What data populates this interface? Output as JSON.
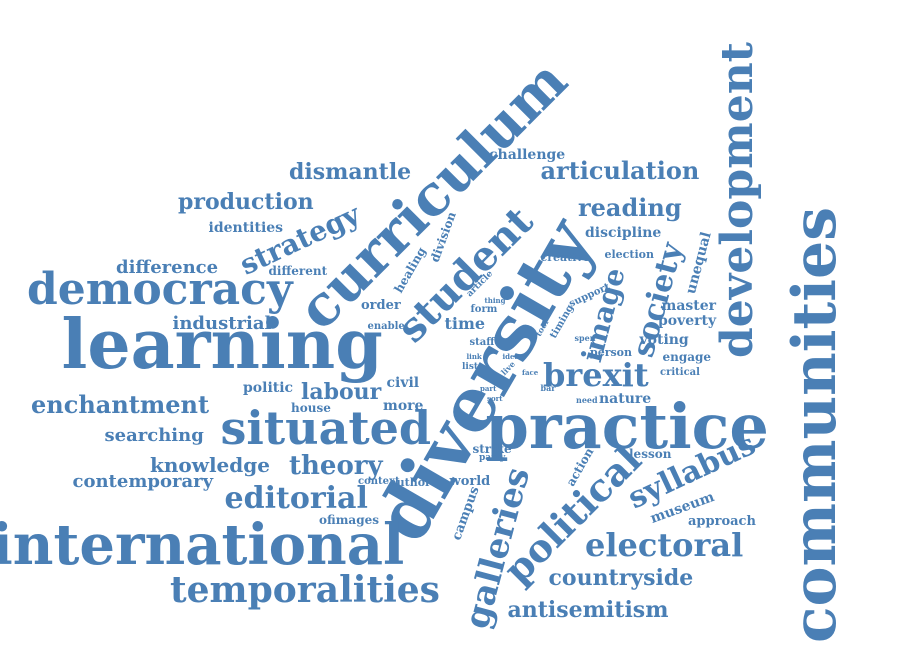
{
  "color": "#4a7fb5",
  "words": [
    "communities",
    "diversity",
    "learning",
    "international",
    "practice",
    "curriculum",
    "development",
    "situated",
    "democracy",
    "student",
    "temporalities",
    "political",
    "galleries",
    "brexit",
    "society",
    "editorial",
    "electoral",
    "syllabus",
    "strategy",
    "image",
    "enchantment",
    "theory",
    "labour",
    "production",
    "reading",
    "articulation",
    "dismantle",
    "countryside",
    "antisemitism",
    "knowledge",
    "searching",
    "contemporary",
    "industrial",
    "difference",
    "identities",
    "discipline",
    "unequal",
    "challenge",
    "museum",
    "approach",
    "poverty",
    "master",
    "voting",
    "engage",
    "critical",
    "person",
    "nature",
    "lesson",
    "action",
    "strike",
    "world",
    "campus",
    "author",
    "context",
    "ofimages",
    "politic",
    "house",
    "civil",
    "more",
    "time",
    "order",
    "enable",
    "staff",
    "form",
    "different",
    "healing",
    "division",
    "creative",
    "election",
    "support",
    "timing",
    "article",
    "thing",
    "tool",
    "spen",
    "link",
    "idea",
    "list",
    "live",
    "face",
    "part",
    "sort",
    "need",
    "party",
    "bar"
  ]
}
